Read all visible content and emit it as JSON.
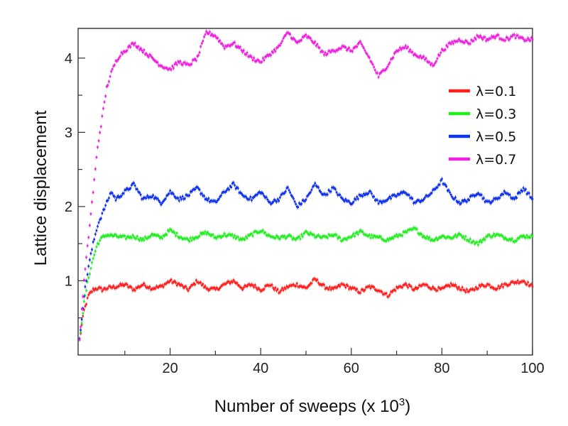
{
  "chart_data": {
    "type": "scatter",
    "title": "",
    "xlabel": "Number of sweeps (x 10",
    "xlabel_sup": "3",
    "xlabel_close": ")",
    "ylabel": "Lattice displacement",
    "xlim": [
      0,
      100
    ],
    "ylim": [
      0,
      4.4
    ],
    "x_ticks": [
      20,
      40,
      60,
      80,
      100
    ],
    "x_minor_ticks": [
      10,
      30,
      50,
      70,
      90
    ],
    "y_ticks": [
      1,
      2,
      3,
      4
    ],
    "y_minor_ticks": [
      0.5,
      1.5,
      2.5,
      3.5
    ],
    "grid": false,
    "legend_position": "right",
    "series": [
      {
        "name": "λ=0.1",
        "color": "#ff2020",
        "x": [
          0,
          1,
          2,
          3,
          4,
          5,
          6,
          8,
          10,
          12,
          14,
          16,
          18,
          20,
          22,
          24,
          26,
          28,
          30,
          32,
          34,
          36,
          38,
          40,
          42,
          44,
          46,
          48,
          50,
          52,
          54,
          56,
          58,
          60,
          62,
          64,
          66,
          68,
          70,
          72,
          74,
          76,
          78,
          80,
          82,
          84,
          86,
          88,
          90,
          92,
          94,
          96,
          98,
          100
        ],
        "y": [
          0.2,
          0.6,
          0.8,
          0.88,
          0.9,
          0.88,
          0.9,
          0.92,
          0.95,
          0.88,
          0.95,
          0.9,
          0.92,
          1.0,
          0.95,
          0.88,
          1.0,
          0.9,
          0.88,
          0.95,
          1.0,
          0.9,
          0.95,
          0.88,
          0.95,
          0.85,
          0.92,
          0.95,
          0.9,
          1.02,
          0.92,
          0.88,
          0.95,
          0.9,
          0.85,
          0.92,
          0.88,
          0.8,
          0.9,
          0.95,
          0.88,
          0.95,
          0.9,
          0.88,
          0.95,
          0.9,
          0.85,
          0.92,
          0.95,
          0.9,
          0.95,
          0.98,
          1.0,
          0.92
        ]
      },
      {
        "name": "λ=0.3",
        "color": "#22ee22",
        "x": [
          0,
          1,
          2,
          3,
          4,
          5,
          6,
          8,
          10,
          12,
          14,
          16,
          18,
          20,
          22,
          24,
          26,
          28,
          30,
          32,
          34,
          36,
          38,
          40,
          42,
          44,
          46,
          48,
          50,
          52,
          54,
          56,
          58,
          60,
          62,
          64,
          66,
          68,
          70,
          72,
          74,
          76,
          78,
          80,
          82,
          84,
          86,
          88,
          90,
          92,
          94,
          96,
          98,
          100
        ],
        "y": [
          0.2,
          0.7,
          1.05,
          1.3,
          1.5,
          1.58,
          1.62,
          1.6,
          1.58,
          1.6,
          1.55,
          1.62,
          1.58,
          1.68,
          1.6,
          1.55,
          1.6,
          1.65,
          1.58,
          1.62,
          1.6,
          1.55,
          1.62,
          1.68,
          1.6,
          1.58,
          1.6,
          1.55,
          1.65,
          1.6,
          1.58,
          1.62,
          1.55,
          1.6,
          1.66,
          1.6,
          1.58,
          1.55,
          1.6,
          1.65,
          1.7,
          1.6,
          1.55,
          1.6,
          1.58,
          1.62,
          1.55,
          1.5,
          1.6,
          1.62,
          1.58,
          1.55,
          1.6,
          1.6
        ]
      },
      {
        "name": "λ=0.5",
        "color": "#1133ee",
        "x": [
          0,
          1,
          2,
          3,
          4,
          5,
          6,
          7,
          8,
          10,
          12,
          14,
          16,
          18,
          20,
          22,
          24,
          26,
          28,
          30,
          32,
          34,
          36,
          38,
          40,
          42,
          44,
          46,
          48,
          50,
          52,
          54,
          56,
          58,
          60,
          62,
          64,
          66,
          68,
          70,
          72,
          74,
          76,
          78,
          80,
          82,
          84,
          86,
          88,
          90,
          92,
          94,
          96,
          98,
          100
        ],
        "y": [
          0.2,
          0.8,
          1.2,
          1.5,
          1.75,
          1.9,
          2.05,
          2.2,
          2.1,
          2.2,
          2.3,
          2.1,
          2.15,
          2.05,
          2.2,
          2.1,
          2.15,
          2.25,
          2.1,
          2.05,
          2.2,
          2.3,
          2.15,
          2.1,
          2.2,
          2.05,
          2.1,
          2.25,
          2.0,
          2.1,
          2.3,
          2.15,
          2.25,
          2.1,
          2.05,
          2.15,
          2.2,
          2.05,
          2.1,
          2.15,
          2.2,
          2.05,
          2.1,
          2.2,
          2.35,
          2.15,
          2.05,
          2.1,
          2.2,
          2.05,
          2.1,
          2.2,
          2.1,
          2.25,
          2.1
        ]
      },
      {
        "name": "λ=0.7",
        "color": "#ee22dd",
        "x": [
          0,
          1,
          2,
          3,
          4,
          5,
          6,
          7,
          8,
          9,
          10,
          12,
          14,
          16,
          18,
          20,
          22,
          24,
          26,
          28,
          30,
          32,
          34,
          36,
          38,
          40,
          42,
          44,
          46,
          48,
          50,
          52,
          54,
          56,
          58,
          60,
          62,
          64,
          66,
          68,
          70,
          72,
          74,
          76,
          78,
          80,
          82,
          84,
          86,
          88,
          90,
          92,
          94,
          96,
          98,
          100
        ],
        "y": [
          0.2,
          1.0,
          1.6,
          2.2,
          2.8,
          3.2,
          3.6,
          3.8,
          3.95,
          4.05,
          4.1,
          4.2,
          4.1,
          4.0,
          3.9,
          3.85,
          3.95,
          3.9,
          4.0,
          4.35,
          4.3,
          4.15,
          4.2,
          4.1,
          4.0,
          3.95,
          4.05,
          4.15,
          4.35,
          4.2,
          4.3,
          4.2,
          4.05,
          4.1,
          4.15,
          4.1,
          4.2,
          4.0,
          3.75,
          3.9,
          4.1,
          4.15,
          4.05,
          4.0,
          3.9,
          4.1,
          4.2,
          4.25,
          4.2,
          4.3,
          4.25,
          4.3,
          4.25,
          4.3,
          4.25,
          4.25
        ]
      }
    ]
  }
}
